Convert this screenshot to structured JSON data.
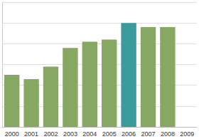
{
  "chart_data": {
    "type": "bar",
    "categories": [
      "2000",
      "2001",
      "2002",
      "2003",
      "2004",
      "2005",
      "2006",
      "2007",
      "2008",
      "2009"
    ],
    "values": [
      2.5,
      2.3,
      2.9,
      3.8,
      4.1,
      4.2,
      5.0,
      4.8,
      4.8,
      null
    ],
    "colors": [
      "#87a862",
      "#87a862",
      "#87a862",
      "#87a862",
      "#87a862",
      "#87a862",
      "#3a9a9c",
      "#87a862",
      "#87a862",
      "#87a862"
    ],
    "ylim": [
      0,
      6
    ],
    "yticks": [
      0,
      1,
      2,
      3,
      4,
      5,
      6
    ],
    "grid": true,
    "tick_labels": "x"
  }
}
